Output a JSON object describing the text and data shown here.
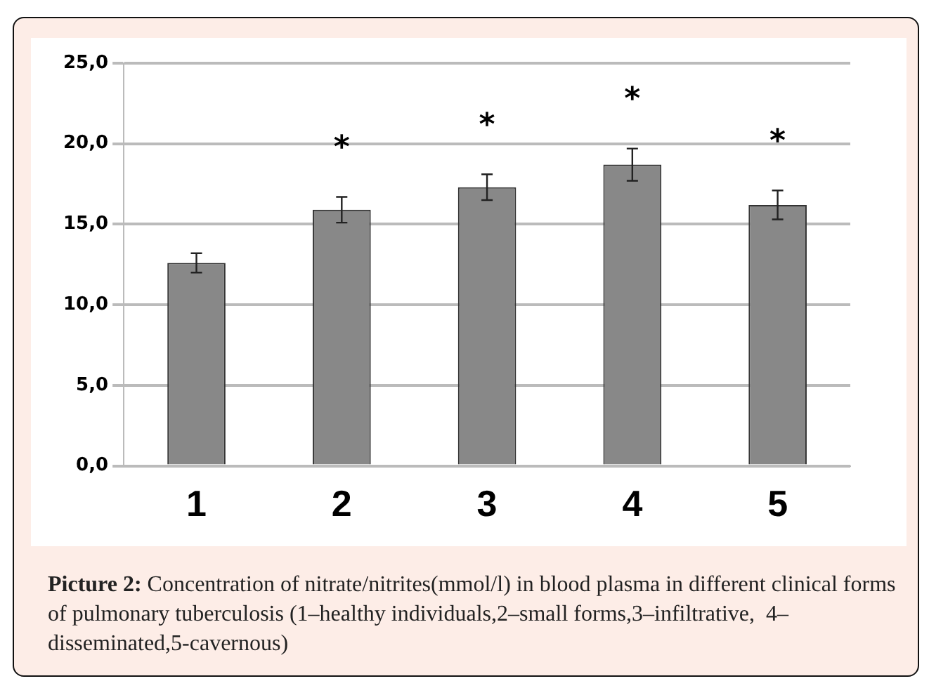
{
  "chart_data": {
    "type": "bar",
    "categories": [
      "1",
      "2",
      "3",
      "4",
      "5"
    ],
    "values": [
      12.6,
      15.9,
      17.3,
      18.7,
      16.2
    ],
    "errors": [
      0.6,
      0.8,
      0.8,
      1.0,
      0.9
    ],
    "color": "#888888",
    "ylim": [
      0,
      25
    ],
    "yticks": [
      {
        "value": 0,
        "label": "0,0"
      },
      {
        "value": 5,
        "label": "5,0"
      },
      {
        "value": 10,
        "label": "10,0"
      },
      {
        "value": 15,
        "label": "15,0"
      },
      {
        "value": 20,
        "label": "20,0"
      },
      {
        "value": 25,
        "label": "25,0"
      }
    ],
    "grid": "y",
    "legend": false,
    "value_labels": [
      null,
      "*",
      "*",
      "*",
      "*"
    ],
    "annotations": [
      "Picture 2: Concentration of nitrate/nitrites(mmol/l) in blood plasma in different clinical forms of pulmonary tuberculosis (1–healthy individuals,2–small forms,3–infiltrative,  4–disseminated,5-cavernous)"
    ]
  }
}
